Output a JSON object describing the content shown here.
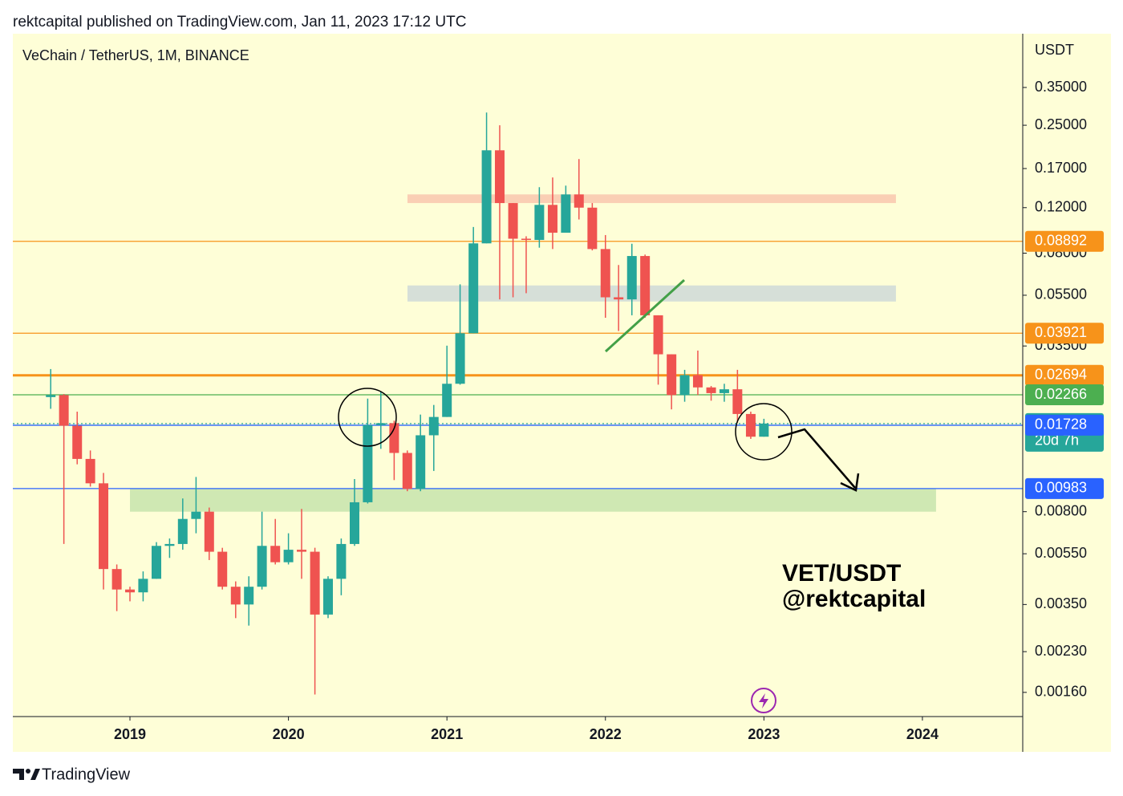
{
  "header": "rektcapital published on TradingView.com, Jan 11, 2023 17:12 UTC",
  "footer": "TradingView",
  "chart_data": {
    "type": "candlestick",
    "title": "VeChain / TetherUS, 1M, BINANCE",
    "y_axis_unit": "USDT",
    "annotations": [
      "VET/USDT",
      "@rektcapital"
    ],
    "log_scale": true,
    "up_color": "#26a69a",
    "down_color": "#ef5350",
    "x": [
      2018.5,
      2018.583,
      2018.667,
      2018.75,
      2018.833,
      2018.917,
      2019,
      2019.083,
      2019.167,
      2019.25,
      2019.333,
      2019.417,
      2019.5,
      2019.583,
      2019.667,
      2019.75,
      2019.833,
      2019.917,
      2020,
      2020.083,
      2020.167,
      2020.25,
      2020.333,
      2020.417,
      2020.5,
      2020.583,
      2020.667,
      2020.75,
      2020.833,
      2020.917,
      2021,
      2021.083,
      2021.167,
      2021.25,
      2021.333,
      2021.417,
      2021.5,
      2021.583,
      2021.667,
      2021.75,
      2021.833,
      2021.917,
      2022,
      2022.083,
      2022.167,
      2022.25,
      2022.333,
      2022.417,
      2022.5,
      2022.583,
      2022.667,
      2022.75,
      2022.833,
      2022.917,
      2023
    ],
    "open": [
      0.0222,
      0.0226,
      0.0172,
      0.0128,
      0.0103,
      0.0048,
      0.004,
      0.0039,
      0.0044,
      0.0059,
      0.006,
      0.0075,
      0.008,
      0.0056,
      0.0041,
      0.0035,
      0.0041,
      0.0059,
      0.0051,
      0.0057,
      0.0056,
      0.0032,
      0.0044,
      0.006,
      0.0087,
      0.0173,
      0.0176,
      0.0135,
      0.0098,
      0.0158,
      0.0186,
      0.025,
      0.0392,
      0.0873,
      0.2,
      0.125,
      0.091,
      0.09,
      0.123,
      0.096,
      0.135,
      0.12,
      0.083,
      0.054,
      0.053,
      0.078,
      0.046,
      0.0325,
      0.0226,
      0.027,
      0.0242,
      0.023,
      0.0238,
      0.0191,
      0.0156
    ],
    "high": [
      0.0285,
      0.0228,
      0.0195,
      0.0138,
      0.0113,
      0.005,
      0.0041,
      0.0047,
      0.0061,
      0.0063,
      0.009,
      0.0109,
      0.0083,
      0.0058,
      0.0043,
      0.0045,
      0.008,
      0.0075,
      0.0066,
      0.0082,
      0.0058,
      0.0045,
      0.0063,
      0.0107,
      0.0219,
      0.0233,
      0.018,
      0.0138,
      0.019,
      0.0207,
      0.0351,
      0.0606,
      0.101,
      0.28,
      0.25,
      0.125,
      0.093,
      0.144,
      0.157,
      0.146,
      0.185,
      0.125,
      0.094,
      0.072,
      0.087,
      0.079,
      0.046,
      0.0325,
      0.0283,
      0.0336,
      0.0245,
      0.025,
      0.0283,
      0.0195,
      0.0183
    ],
    "low": [
      0.02,
      0.006,
      0.0122,
      0.01,
      0.004,
      0.0033,
      0.0036,
      0.0036,
      0.0044,
      0.0053,
      0.0057,
      0.0066,
      0.0052,
      0.004,
      0.0031,
      0.0029,
      0.004,
      0.005,
      0.005,
      0.0044,
      0.00157,
      0.0031,
      0.0038,
      0.0059,
      0.0086,
      0.014,
      0.0106,
      0.0096,
      0.0096,
      0.0115,
      0.0186,
      0.0248,
      0.0392,
      0.0873,
      0.053,
      0.054,
      0.056,
      0.084,
      0.083,
      0.096,
      0.108,
      0.082,
      0.045,
      0.04,
      0.046,
      0.045,
      0.0248,
      0.0199,
      0.0213,
      0.0226,
      0.0215,
      0.0213,
      0.0177,
      0.0153,
      0.0156
    ],
    "close": [
      0.0226,
      0.0172,
      0.0128,
      0.0103,
      0.0048,
      0.004,
      0.0039,
      0.0044,
      0.0059,
      0.006,
      0.0075,
      0.008,
      0.0056,
      0.0041,
      0.0035,
      0.0041,
      0.0059,
      0.0051,
      0.0057,
      0.0056,
      0.0032,
      0.0044,
      0.006,
      0.0087,
      0.0173,
      0.0176,
      0.0135,
      0.0098,
      0.0158,
      0.0186,
      0.025,
      0.0392,
      0.0873,
      0.2,
      0.125,
      0.091,
      0.09,
      0.123,
      0.096,
      0.135,
      0.12,
      0.083,
      0.054,
      0.053,
      0.078,
      0.046,
      0.0325,
      0.0226,
      0.027,
      0.0242,
      0.023,
      0.0238,
      0.0191,
      0.0156,
      0.01754
    ],
    "xlim": [
      2018.261,
      2024.633
    ],
    "xticks": [
      2019,
      2020,
      2021,
      2022,
      2023,
      2024
    ],
    "ylim": [
      0.00129,
      0.565
    ],
    "yticks": [
      {
        "value": 0.35,
        "label": "0.35000"
      },
      {
        "value": 0.25,
        "label": "0.25000"
      },
      {
        "value": 0.17,
        "label": "0.17000"
      },
      {
        "value": 0.12,
        "label": "0.12000"
      },
      {
        "value": 0.08,
        "label": "0.08000"
      },
      {
        "value": 0.055,
        "label": "0.05500"
      },
      {
        "value": 0.035,
        "label": "0.03500"
      },
      {
        "value": 0.008,
        "label": "0.00800"
      },
      {
        "value": 0.0055,
        "label": "0.00550"
      },
      {
        "value": 0.0035,
        "label": "0.00350"
      },
      {
        "value": 0.0023,
        "label": "0.00230"
      },
      {
        "value": 0.0016,
        "label": "0.00160"
      }
    ],
    "price_lines": [
      {
        "value": 0.08892,
        "color": "#f7931a"
      },
      {
        "value": 0.03921,
        "color": "#f7931a"
      },
      {
        "value": 0.02694,
        "color": "#f7931a"
      },
      {
        "value": 0.02266,
        "color": "#4caf50"
      },
      {
        "value": 0.01754,
        "color": "#26a69a",
        "countdown": "20d 7h"
      },
      {
        "value": 0.01728,
        "color": "#2962ff"
      },
      {
        "value": 0.00983,
        "color": "#2962ff"
      }
    ],
    "zones": [
      {
        "x": [
          2020.751,
          2023.833
        ],
        "low": 0.125,
        "high": 0.135,
        "color": "#f9c7ae"
      },
      {
        "x": [
          2020.751,
          2023.833
        ],
        "low": 0.052,
        "high": 0.06,
        "color": "#cfd9d8"
      },
      {
        "x": [
          2019.0,
          2024.086
        ],
        "low": 0.008,
        "high": 0.0098,
        "color": "#c7e4ad"
      }
    ]
  }
}
